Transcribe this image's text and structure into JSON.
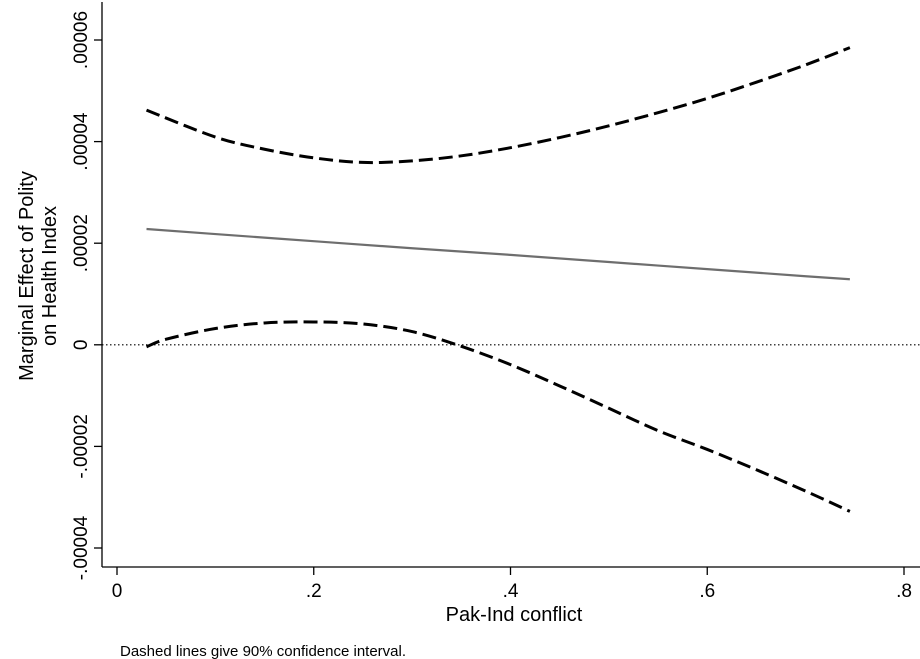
{
  "chart_data": {
    "type": "line",
    "title": "",
    "xlabel": "Pak-Ind conflict",
    "ylabel_lines": [
      "Marginal Effect of Polity",
      "on Health Index"
    ],
    "xlim": [
      0,
      0.8
    ],
    "ylim": [
      -4e-05,
      6e-05
    ],
    "x_ticks": [
      0,
      0.2,
      0.4,
      0.6,
      0.8
    ],
    "x_tick_labels": [
      "0",
      ".2",
      ".4",
      ".6",
      ".8"
    ],
    "y_ticks": [
      -4e-05,
      -2e-05,
      0,
      2e-05,
      4e-05,
      6e-05
    ],
    "y_tick_labels": [
      "-.00004",
      "-.00002",
      "0",
      ".00002",
      ".00004",
      ".00006"
    ],
    "reference_line": {
      "y": 0,
      "style": "dotted"
    },
    "grid": false,
    "legend": "none",
    "series": [
      {
        "role": "estimate",
        "style": "solid",
        "color": "#6e6e6e",
        "x": [
          0.03,
          0.1,
          0.2,
          0.3,
          0.4,
          0.5,
          0.6,
          0.7,
          0.745
        ],
        "y": [
          2.28e-05,
          2.18e-05,
          2.04e-05,
          1.9e-05,
          1.77e-05,
          1.63e-05,
          1.49e-05,
          1.35e-05,
          1.29e-05
        ]
      },
      {
        "role": "upper",
        "style": "dashed",
        "color": "#000000",
        "x": [
          0.03,
          0.1,
          0.15,
          0.2,
          0.25,
          0.3,
          0.35,
          0.4,
          0.45,
          0.5,
          0.55,
          0.6,
          0.65,
          0.7,
          0.745
        ],
        "y": [
          4.62e-05,
          4.09e-05,
          3.85e-05,
          3.68e-05,
          3.59e-05,
          3.62e-05,
          3.72e-05,
          3.88e-05,
          4.08e-05,
          4.31e-05,
          4.57e-05,
          4.85e-05,
          5.17e-05,
          5.51e-05,
          5.85e-05
        ]
      },
      {
        "role": "lower",
        "style": "dashed",
        "color": "#000000",
        "x": [
          0.03,
          0.05,
          0.1,
          0.15,
          0.2,
          0.25,
          0.3,
          0.35,
          0.4,
          0.45,
          0.5,
          0.55,
          0.6,
          0.65,
          0.7,
          0.745
        ],
        "y": [
          -4e-07,
          1.1e-06,
          3.2e-06,
          4.3e-06,
          4.5e-06,
          4.1e-06,
          2.6e-06,
          -3e-07,
          -3.9e-06,
          -8.1e-06,
          -1.25e-05,
          -1.69e-05,
          -2.06e-05,
          -2.46e-05,
          -2.88e-05,
          -3.28e-05
        ]
      }
    ],
    "note": "Dashed lines give 90% confidence interval."
  }
}
